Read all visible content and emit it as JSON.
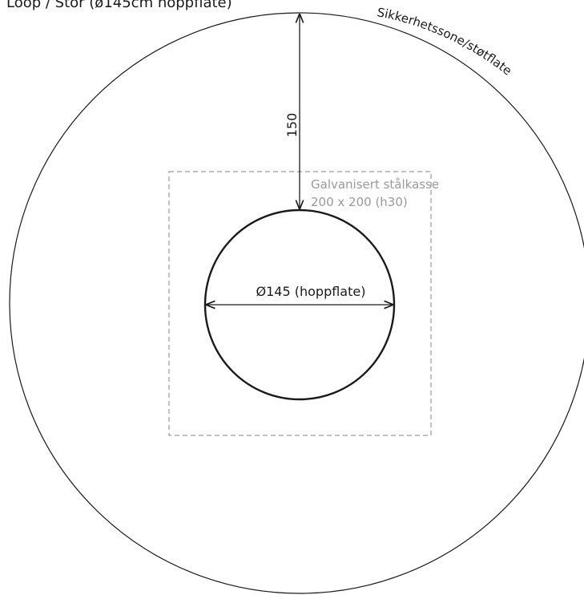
{
  "title": "Loop / Stor (ø145cm hoppflate)",
  "safety_zone_label": "Sikkerhetssone/støtflate",
  "radial_dimension": "150",
  "steel_box": {
    "line1": "Galvanisert stålkasse",
    "line2": "200 x 200 (h30)"
  },
  "diameter_label": "Ø145 (hoppflate)",
  "colors": {
    "line": "#1a1a1a",
    "dashed_box": "#9a9a9a",
    "label_gray": "#9a9a9a"
  }
}
